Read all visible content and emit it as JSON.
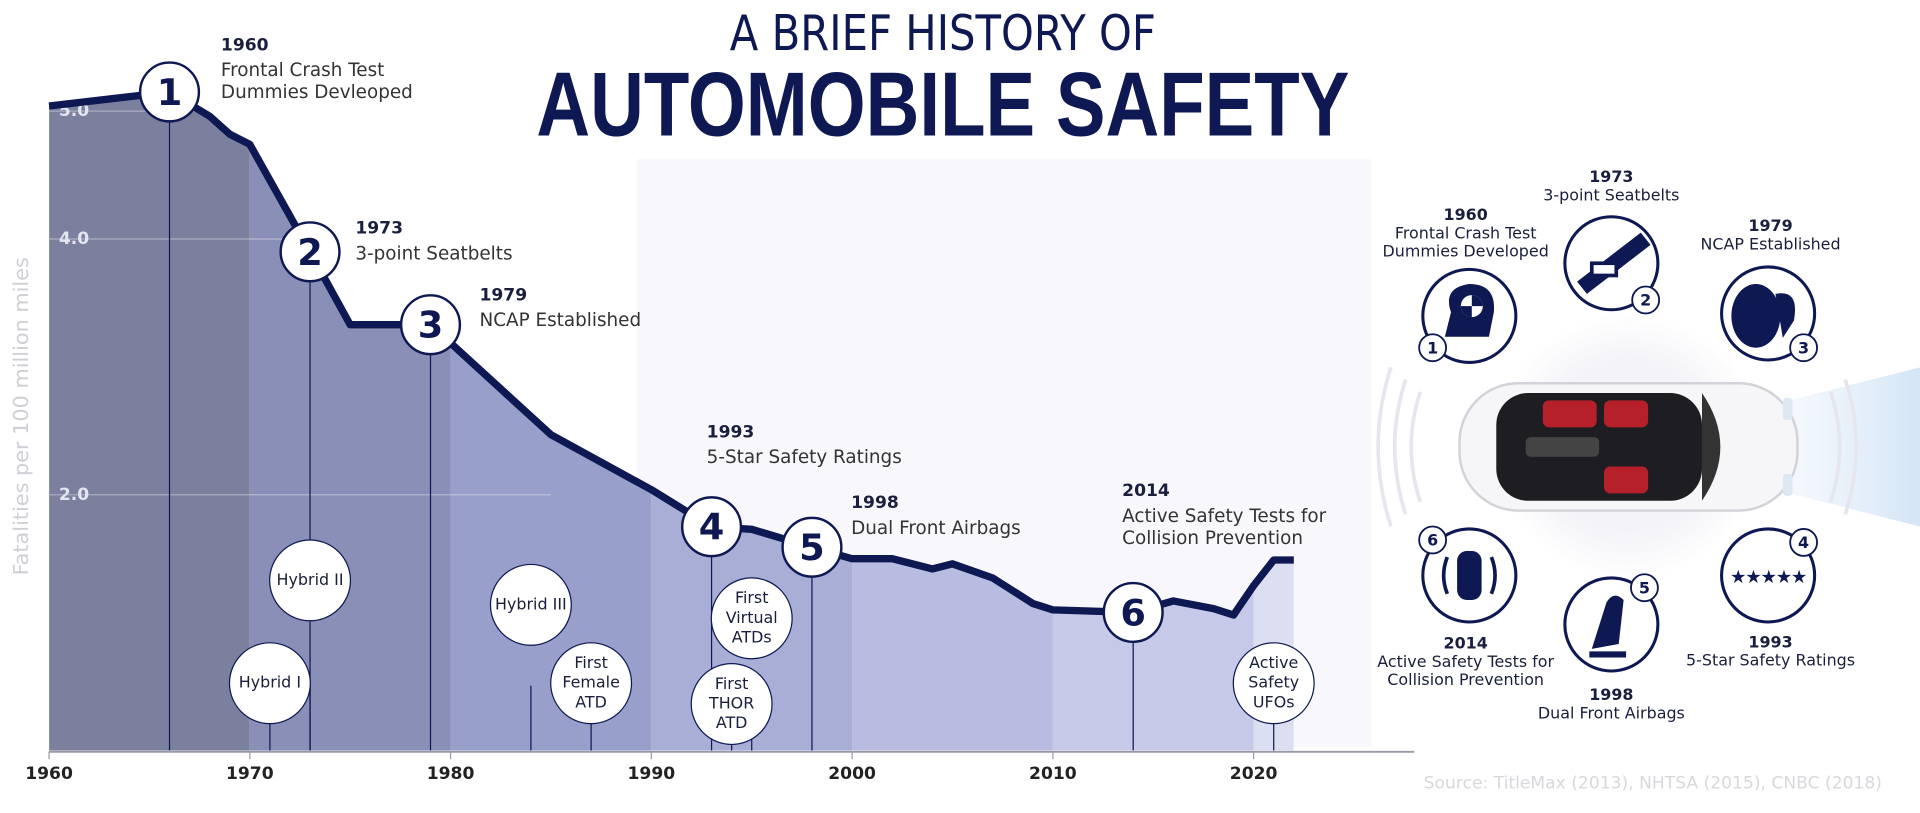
{
  "chart_data": {
    "type": "area",
    "kicker": "A BRIEF HISTORY OF",
    "title": "AUTOMOBILE SAFETY",
    "y_label": "Fatalities per 100 million miles",
    "x": [
      1960,
      1966,
      1968,
      1969,
      1970,
      1973,
      1975,
      1979,
      1985,
      1990,
      1993,
      1995,
      1998,
      2000,
      2002,
      2004,
      2005,
      2007,
      2009,
      2010,
      2014,
      2016,
      2018,
      2019,
      2020,
      2021,
      2022
    ],
    "values": [
      5.04,
      5.15,
      4.96,
      4.82,
      4.74,
      3.9,
      3.33,
      3.33,
      2.47,
      2.04,
      1.75,
      1.73,
      1.59,
      1.5,
      1.5,
      1.42,
      1.46,
      1.35,
      1.15,
      1.1,
      1.08,
      1.17,
      1.11,
      1.06,
      1.29,
      1.49,
      1.49
    ],
    "color": "#0e1852",
    "xlim": [
      1960,
      2028
    ],
    "xticks": [
      1960,
      1970,
      1980,
      1990,
      2000,
      2010,
      2020
    ],
    "ylim": [
      0,
      5.4
    ],
    "yticks": [
      {
        "value": 2,
        "label": "2.0"
      },
      {
        "value": 4,
        "label": "4.0"
      },
      {
        "value": 5,
        "label": "5.0"
      }
    ],
    "grid": true,
    "milestones": [
      {
        "number": 1,
        "year": "1960",
        "x": 1966,
        "lines": [
          "Frontal Crash Test",
          "Dummies Devleoped"
        ]
      },
      {
        "number": 2,
        "year": "1973",
        "x": 1973,
        "lines": [
          "3-point Seatbelts"
        ]
      },
      {
        "number": 3,
        "year": "1979",
        "x": 1979,
        "lines": [
          "NCAP Established"
        ]
      },
      {
        "number": 4,
        "year": "1993",
        "x": 1993,
        "lines": [
          "5-Star Safety Ratings"
        ]
      },
      {
        "number": 5,
        "year": "1998",
        "x": 1998,
        "lines": [
          "Dual Front Airbags"
        ]
      },
      {
        "number": 6,
        "year": "2014",
        "x": 2014,
        "lines": [
          "Active Safety Tests for",
          "Collision Prevention"
        ]
      }
    ],
    "dummies": [
      {
        "x": 1971,
        "lines": [
          "Hybrid I"
        ]
      },
      {
        "x": 1973,
        "lines": [
          "Hybrid II"
        ]
      },
      {
        "x": 1984,
        "lines": [
          "Hybrid III"
        ]
      },
      {
        "x": 1987,
        "lines": [
          "First",
          "Female",
          "ATD"
        ]
      },
      {
        "x": 1994,
        "lines": [
          "First",
          "THOR",
          "ATD"
        ]
      },
      {
        "x": 1995,
        "lines": [
          "First",
          "Virtual",
          "ATDs"
        ]
      },
      {
        "x": 2021,
        "lines": [
          "Active",
          "Safety",
          "UFOs"
        ]
      }
    ],
    "source": "Source: TitleMax (2013), NHTSA (2015), CNBC (2018)"
  },
  "safety_features": [
    {
      "number": 1,
      "year": "1960",
      "lines": [
        "Frontal Crash Test",
        "Dummies Developed"
      ]
    },
    {
      "number": 2,
      "year": "1973",
      "lines": [
        "3-point Seatbelts"
      ]
    },
    {
      "number": 3,
      "year": "1979",
      "lines": [
        "NCAP Established"
      ]
    },
    {
      "number": 4,
      "year": "1993",
      "lines": [
        "5-Star Safety Ratings"
      ]
    },
    {
      "number": 5,
      "year": "1998",
      "lines": [
        "Dual Front Airbags"
      ]
    },
    {
      "number": 6,
      "year": "2014",
      "lines": [
        "Active Safety Tests for",
        "Collision Prevention"
      ]
    }
  ]
}
